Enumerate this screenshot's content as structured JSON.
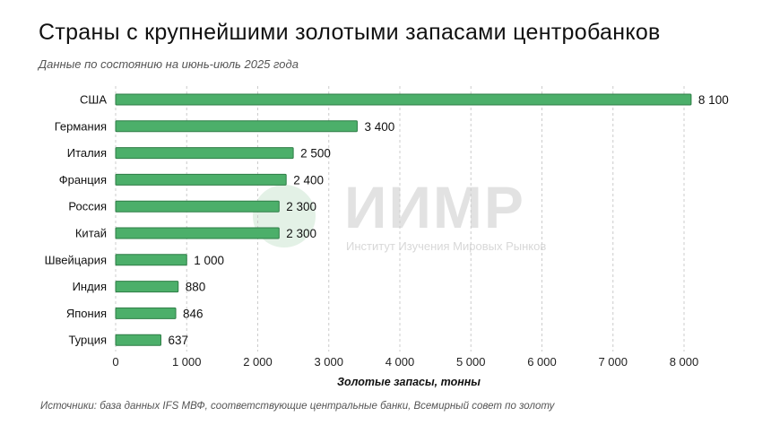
{
  "title": "Страны с крупнейшими золотыми запасами центробанков",
  "subtitle": "Данные по состоянию на июнь-июль 2025 года",
  "source": "Источники: база данных IFS МВФ, соответствующие центральные банки, Всемирный совет по золоту",
  "watermark": {
    "name": "ИИМР",
    "tagline": "Институт Изучения Мировых Рынков"
  },
  "colors": {
    "bar": "#4caf6a",
    "bar_border": "#2e7d46",
    "grid": "#cccccc",
    "text": "#111111"
  },
  "chart_data": {
    "type": "bar",
    "orientation": "horizontal",
    "categories": [
      "США",
      "Германия",
      "Италия",
      "Франция",
      "Россия",
      "Китай",
      "Швейцария",
      "Индия",
      "Япония",
      "Турция"
    ],
    "values": [
      8100,
      3400,
      2500,
      2400,
      2300,
      2300,
      1000,
      880,
      846,
      637
    ],
    "value_labels": [
      "8 100",
      "3 400",
      "2 500",
      "2 400",
      "2 300",
      "2 300",
      "1 000",
      "880",
      "846",
      "637"
    ],
    "xlabel": "Золотые запасы, тонны",
    "ylabel": "",
    "xlim": [
      0,
      8000
    ],
    "xticks": [
      0,
      1000,
      2000,
      3000,
      4000,
      5000,
      6000,
      7000,
      8000
    ],
    "xtick_labels": [
      "0",
      "1 000",
      "2 000",
      "3 000",
      "4 000",
      "5 000",
      "6 000",
      "7 000",
      "8 000"
    ],
    "grid": "vertical dashed",
    "legend": "none"
  }
}
